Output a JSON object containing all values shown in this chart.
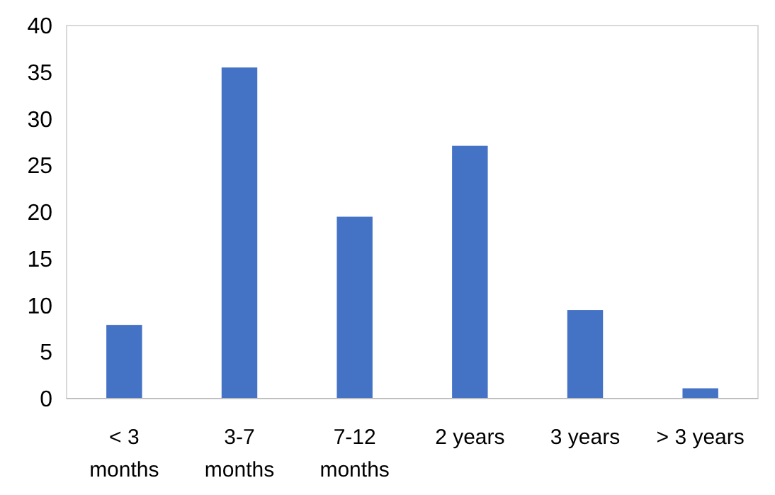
{
  "chart_data": {
    "type": "bar",
    "categories": [
      "< 3 months",
      "3-7 months",
      "7-12 months",
      "2 years",
      "3 years",
      "> 3 years"
    ],
    "values": [
      7.9,
      35.5,
      19.5,
      27.1,
      9.5,
      1.1
    ],
    "color": "#4472c4",
    "ylim": [
      0,
      40
    ],
    "yticks": [
      0,
      5,
      10,
      15,
      20,
      25,
      30,
      35,
      40
    ],
    "grid": false
  }
}
